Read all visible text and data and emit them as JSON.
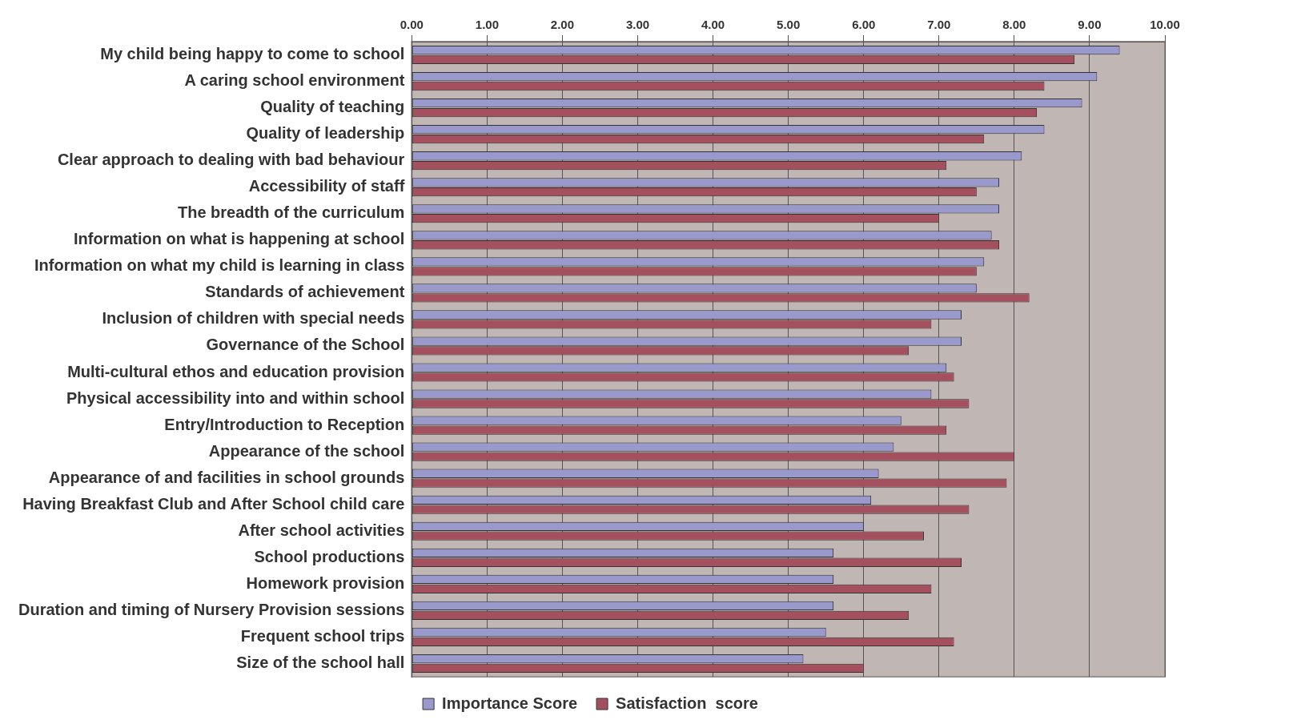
{
  "chart_data": {
    "type": "bar",
    "orientation": "horizontal",
    "categories": [
      "My child being happy to come to school",
      "A caring school environment",
      "Quality of teaching",
      "Quality of leadership",
      "Clear approach to dealing with bad behaviour",
      "Accessibility of staff",
      "The breadth of the curriculum",
      "Information on what is happening at school",
      "Information on what my child is learning in class",
      "Standards of achievement",
      "Inclusion of children with special needs",
      "Governance of the School",
      "Multi-cultural ethos and education provision",
      "Physical accessibility into and within school",
      "Entry/Introduction to Reception",
      "Appearance of the school",
      "Appearance of and facilities in school grounds",
      "Having Breakfast Club and After School child care",
      "After school activities",
      "School productions",
      "Homework provision",
      "Duration and timing of Nursery Provision sessions",
      "Frequent school trips",
      "Size of the school hall"
    ],
    "series": [
      {
        "name": "Importance Score",
        "color": "#9999cc",
        "values": [
          9.4,
          9.1,
          8.9,
          8.4,
          8.1,
          7.8,
          7.8,
          7.7,
          7.6,
          7.5,
          7.3,
          7.3,
          7.1,
          6.9,
          6.5,
          6.4,
          6.2,
          6.1,
          6.0,
          5.6,
          5.6,
          5.6,
          5.5,
          5.2
        ]
      },
      {
        "name": "Satisfaction  score",
        "color": "#a5505f",
        "values": [
          8.8,
          8.4,
          8.3,
          7.6,
          7.1,
          7.5,
          7.0,
          7.8,
          7.5,
          8.2,
          6.9,
          6.6,
          7.2,
          7.4,
          7.1,
          8.0,
          7.9,
          7.4,
          6.8,
          7.3,
          6.9,
          6.6,
          7.2,
          6.0
        ]
      }
    ],
    "xlim": [
      0,
      10
    ],
    "xticks": [
      {
        "value": 0,
        "label": "0.00"
      },
      {
        "value": 1,
        "label": "1.00"
      },
      {
        "value": 2,
        "label": "2.00"
      },
      {
        "value": 3,
        "label": "3.00"
      },
      {
        "value": 4,
        "label": "4.00"
      },
      {
        "value": 5,
        "label": "5.00"
      },
      {
        "value": 6,
        "label": "6.00"
      },
      {
        "value": 7,
        "label": "7.00"
      },
      {
        "value": 8,
        "label": "8.00"
      },
      {
        "value": 9,
        "label": "9.00"
      },
      {
        "value": 10,
        "label": "10.00"
      }
    ],
    "grid": "x",
    "legend": "bottom"
  }
}
